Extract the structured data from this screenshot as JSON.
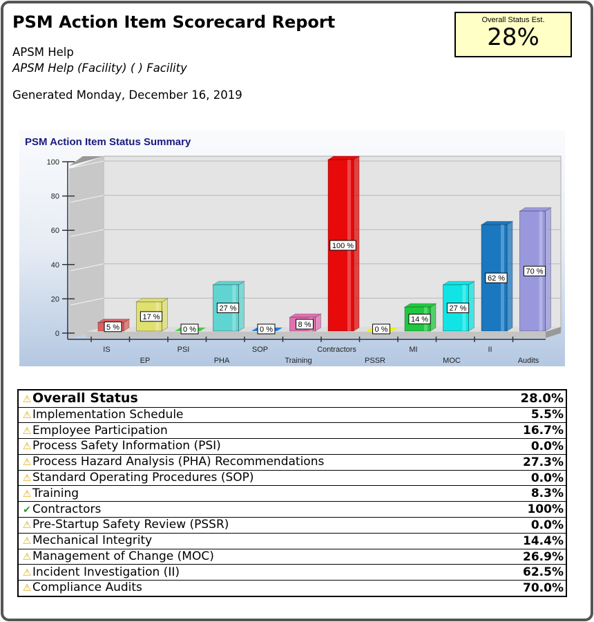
{
  "header": {
    "title": "PSM Action Item Scorecard Report",
    "org": "APSM Help",
    "facility": "APSM Help (Facility) ( ) Facility",
    "generated": "Generated Monday, December 16, 2019"
  },
  "overall_box": {
    "label": "Overall Status Est.",
    "value": "28%"
  },
  "chart_data": {
    "type": "bar",
    "title": "PSM Action Item Status Summary",
    "categories": [
      "IS",
      "EP",
      "PSI",
      "PHA",
      "SOP",
      "Training",
      "Contractors",
      "PSSR",
      "MI",
      "MOC",
      "II",
      "Audits"
    ],
    "values": [
      5,
      17,
      0,
      27,
      0,
      8,
      100,
      0,
      14,
      27,
      62,
      70
    ],
    "data_labels": [
      "5 %",
      "17 %",
      "0 %",
      "27 %",
      "0 %",
      "8 %",
      "100 %",
      "0 %",
      "14 %",
      "27 %",
      "62 %",
      "70 %"
    ],
    "colors": [
      "#e06060",
      "#e0e070",
      "#40d040",
      "#60d4d0",
      "#2080e0",
      "#e070b0",
      "#e80a0a",
      "#f0f000",
      "#20c840",
      "#10e4e4",
      "#1a78c0",
      "#9a98dc"
    ],
    "ylim": [
      0,
      100
    ],
    "yticks": [
      "0",
      "20",
      "40",
      "60",
      "80",
      "100"
    ],
    "grid": true,
    "style": "3d"
  },
  "table": {
    "overall": {
      "label": "Overall Status",
      "value": "28.0%",
      "icon": "warning-icon"
    },
    "rows": [
      {
        "label": "Implementation Schedule",
        "value": "5.5%",
        "icon": "warning-icon"
      },
      {
        "label": "Employee Participation",
        "value": "16.7%",
        "icon": "warning-icon"
      },
      {
        "label": "Process Safety Information (PSI)",
        "value": "0.0%",
        "icon": "warning-icon"
      },
      {
        "label": "Process Hazard Analysis (PHA) Recommendations",
        "value": "27.3%",
        "icon": "warning-icon"
      },
      {
        "label": "Standard Operating Procedures (SOP)",
        "value": "0.0%",
        "icon": "warning-icon"
      },
      {
        "label": "Training",
        "value": "8.3%",
        "icon": "warning-icon"
      },
      {
        "label": "Contractors",
        "value": "100%",
        "icon": "check-icon"
      },
      {
        "label": "Pre-Startup Safety Review (PSSR)",
        "value": "0.0%",
        "icon": "warning-icon"
      },
      {
        "label": "Mechanical Integrity",
        "value": "14.4%",
        "icon": "warning-icon"
      },
      {
        "label": "Management of Change (MOC)",
        "value": "26.9%",
        "icon": "warning-icon"
      },
      {
        "label": "Incident Investigation (II)",
        "value": "62.5%",
        "icon": "warning-icon"
      },
      {
        "label": "Compliance Audits",
        "value": "70.0%",
        "icon": "warning-icon"
      }
    ]
  }
}
